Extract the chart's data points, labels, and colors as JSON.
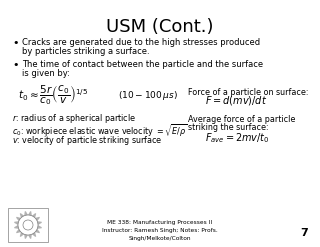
{
  "title": "USM (Cont.)",
  "bg_color": "#ffffff",
  "title_color": "#000000",
  "body_color": "#000000",
  "bullet1_line1": "Cracks are generated due to the high stresses produced",
  "bullet1_line2": "by particles striking a surface.",
  "bullet2_line1": "The time of contact between the particle and the surface",
  "bullet2_line2": "is given by:",
  "formula_t0": "$t_0 \\approx \\dfrac{5r}{c_0}\\left(\\dfrac{c_0}{v}\\right)^{1/5}$",
  "formula_range": "$(10-100\\,\\mu s)$",
  "label_r": "$r$: radius of a spherical particle",
  "label_c0": "$c_0$: workpiece elastic wave velocity $=\\sqrt{E/\\rho}$",
  "label_v": "$v$: velocity of particle striking surface",
  "right_title1": "Force of a particle on surface:",
  "formula_F": "$F = d(mv)/dt$",
  "right_title2a": "Average force of a particle",
  "right_title2b": "striking the surface:",
  "formula_Fave": "$F_{ave} = 2mv/t_0$",
  "footer1": "ME 338: Manufacturing Processes II",
  "footer2": "Instructor: Ramesh Singh; Notes: Profs.",
  "footer3": "Singh/Melkote/Colton",
  "page_num": "7",
  "fig_width": 3.2,
  "fig_height": 2.47,
  "dpi": 100
}
